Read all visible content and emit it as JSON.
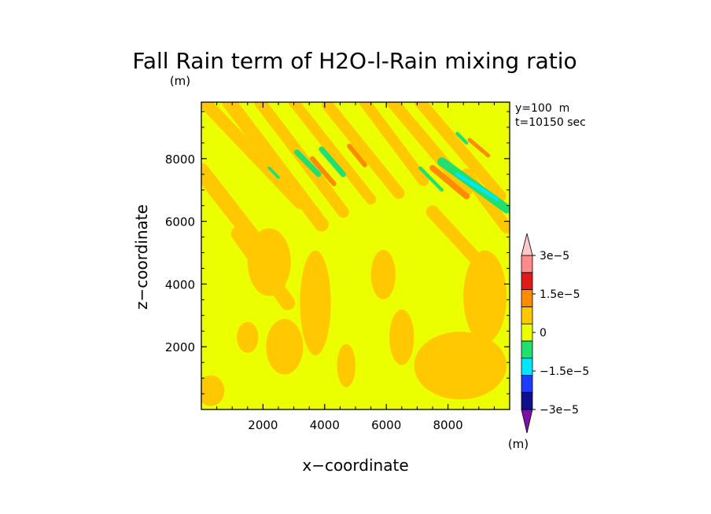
{
  "chart_data": {
    "type": "heatmap",
    "title": "Fall Rain term of H2O-l-Rain mixing ratio",
    "title_unit": "(m)",
    "xlabel": "x−coordinate",
    "ylabel": "z−coordinate",
    "xlim": [
      0,
      10000
    ],
    "ylim": [
      0,
      9800
    ],
    "x_ticks": [
      2000,
      4000,
      6000,
      8000
    ],
    "y_ticks": [
      2000,
      4000,
      6000,
      8000
    ],
    "x_tick_labels": [
      "2000",
      "4000",
      "6000",
      "8000"
    ],
    "y_tick_labels": [
      "2000",
      "4000",
      "6000",
      "8000"
    ],
    "info": [
      "y=100  m",
      "t=10150 sec"
    ],
    "colorbar": {
      "unit": "(m)",
      "labels": [
        "3e−5",
        "1.5e−5",
        "0",
        "−1.5e−5",
        "−3e−5"
      ],
      "label_values": [
        3e-05,
        1.5e-05,
        0,
        -1.5e-05,
        -3e-05
      ],
      "levels": [
        -3e-05,
        -2.25e-05,
        -1.5e-05,
        -7.5e-06,
        0,
        7.5e-06,
        1.5e-05,
        2.25e-05,
        3e-05
      ],
      "colors_bottom_to_top": [
        "#7a12a8",
        "#10108c",
        "#1e3cff",
        "#00e6ff",
        "#20e070",
        "#ecff00",
        "#ffc800",
        "#ff8c00",
        "#e11919",
        "#ff8b8b",
        "#ffc8c8"
      ]
    },
    "field": {
      "background_level_color": "#ecff00",
      "positive_small_color": "#ffc800",
      "positive_medium_color": "#ff8c00",
      "negative_small_color": "#20e070",
      "negative_medium_color": "#00e6ff",
      "positive_bands": [
        {
          "x0": 200,
          "z0": 9700,
          "x1": 3200,
          "z1": 6600,
          "w": 420
        },
        {
          "x0": 900,
          "z0": 9800,
          "x1": 3900,
          "z1": 5900,
          "w": 460
        },
        {
          "x0": 1900,
          "z0": 9800,
          "x1": 4600,
          "z1": 6300,
          "w": 380
        },
        {
          "x0": 3000,
          "z0": 9800,
          "x1": 5500,
          "z1": 6700,
          "w": 340
        },
        {
          "x0": 4100,
          "z0": 9700,
          "x1": 6400,
          "z1": 6900,
          "w": 380
        },
        {
          "x0": 5300,
          "z0": 9800,
          "x1": 7200,
          "z1": 7300,
          "w": 360
        },
        {
          "x0": 6200,
          "z0": 9800,
          "x1": 8600,
          "z1": 7000,
          "w": 400
        },
        {
          "x0": 7100,
          "z0": 9800,
          "x1": 9700,
          "z1": 6800,
          "w": 380
        },
        {
          "x0": 0,
          "z0": 7600,
          "x1": 1900,
          "z1": 5200,
          "w": 520
        },
        {
          "x0": 1200,
          "z0": 5600,
          "x1": 2800,
          "z1": 3400,
          "w": 480
        },
        {
          "x0": 7500,
          "z0": 6300,
          "x1": 9000,
          "z1": 4700,
          "w": 420
        },
        {
          "x0": 8600,
          "z0": 7500,
          "x1": 9900,
          "z1": 5800,
          "w": 380
        }
      ],
      "positive_blobs": [
        {
          "x": 2200,
          "z": 4700,
          "rx": 700,
          "rz": 1100
        },
        {
          "x": 3700,
          "z": 3400,
          "rx": 500,
          "rz": 1700
        },
        {
          "x": 2700,
          "z": 2000,
          "rx": 600,
          "rz": 900
        },
        {
          "x": 8400,
          "z": 1400,
          "rx": 1500,
          "rz": 1100
        },
        {
          "x": 9200,
          "z": 3600,
          "rx": 700,
          "rz": 1500
        },
        {
          "x": 6500,
          "z": 2300,
          "rx": 400,
          "rz": 900
        },
        {
          "x": 5900,
          "z": 4300,
          "rx": 400,
          "rz": 800
        },
        {
          "x": 300,
          "z": 600,
          "rx": 450,
          "rz": 500
        },
        {
          "x": 1500,
          "z": 2300,
          "rx": 350,
          "rz": 500
        },
        {
          "x": 4700,
          "z": 1400,
          "rx": 300,
          "rz": 700
        }
      ],
      "medium_positive_streaks": [
        {
          "x0": 3600,
          "z0": 8000,
          "x1": 4300,
          "z1": 7200,
          "w": 160
        },
        {
          "x0": 4800,
          "z0": 8400,
          "x1": 5300,
          "z1": 7800,
          "w": 160
        },
        {
          "x0": 7500,
          "z0": 7700,
          "x1": 8600,
          "z1": 6800,
          "w": 200
        },
        {
          "x0": 8700,
          "z0": 8600,
          "x1": 9300,
          "z1": 8100,
          "w": 130
        }
      ],
      "negative_streaks": [
        {
          "x0": 3100,
          "z0": 8200,
          "x1": 3800,
          "z1": 7500,
          "w": 180
        },
        {
          "x0": 3900,
          "z0": 8300,
          "x1": 4600,
          "z1": 7500,
          "w": 180
        },
        {
          "x0": 7800,
          "z0": 7900,
          "x1": 9900,
          "z1": 6400,
          "w": 290
        },
        {
          "x0": 7100,
          "z0": 7700,
          "x1": 7800,
          "z1": 7000,
          "w": 110
        },
        {
          "x0": 2200,
          "z0": 7700,
          "x1": 2500,
          "z1": 7400,
          "w": 90
        },
        {
          "x0": 8300,
          "z0": 8800,
          "x1": 8600,
          "z1": 8500,
          "w": 110
        }
      ],
      "strong_negative_streaks": [
        {
          "x0": 8300,
          "z0": 7500,
          "x1": 9600,
          "z1": 6700,
          "w": 110
        }
      ]
    }
  }
}
